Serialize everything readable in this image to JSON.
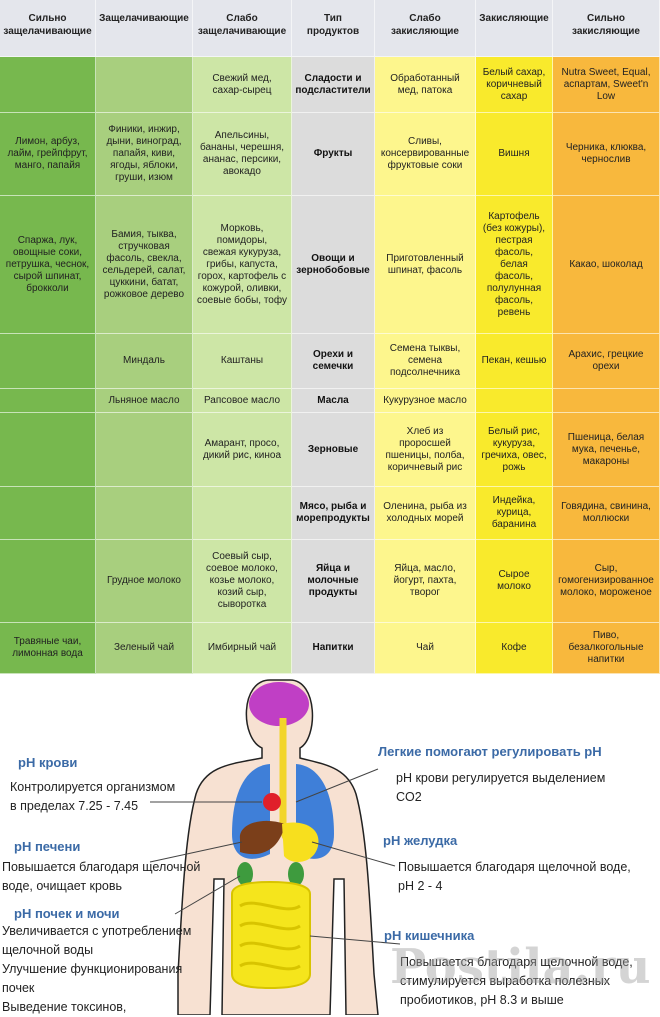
{
  "headers": [
    "Сильно\nзащелачивающие",
    "Защелачивающие",
    "Слабо\nзащелачивающие",
    "Тип\nпродуктов",
    "Слабо\nзакисляющие",
    "Закисляющие",
    "Сильно\nзакисляющие"
  ],
  "column_colors": [
    "#77b84e",
    "#a8cf7e",
    "#cde6a6",
    "#dcdcdc",
    "#fdf68d",
    "#f9ea2c",
    "#f8b83d"
  ],
  "rows": [
    {
      "type": "Сладости и\nподсластители",
      "cells": [
        "",
        "",
        "Свежий мед,\nсахар-сырец",
        "",
        "Обработанный\nмед, патока",
        "Белый сахар,\nкоричневый\nсахар",
        "Nutra Sweet, Equal,\nаспартам, Sweet'n\nLow"
      ]
    },
    {
      "type": "Фрукты",
      "cells": [
        "Лимон, арбуз,\nлайм, грейпфрут,\nманго, папайя",
        "Финики, инжир,\nдыни, виноград,\nпапайя, киви,\nягоды, яблоки,\nгруши, изюм",
        "Апельсины,\nбананы, черешня,\nананас, персики,\nавокадо",
        "",
        "Сливы,\nконсервированные\nфруктовые соки",
        "Вишня",
        "Черника, клюква,\nчернослив"
      ]
    },
    {
      "type": "Овощи и\nзернобобовые",
      "cells": [
        "Спаржа, лук,\nовощные соки,\nпетрушка, чеснок,\nсырой шпинат,\nброкколи",
        "Бамия, тыква,\nстручковая\nфасоль, свекла,\nсельдерей, салат,\nцуккини, батат,\nрожковое дерево",
        "Морковь,\nпомидоры,\nсвежая кукуруза,\nгрибы, капуста,\nгорох, картофель с\nкожурой, оливки,\nсоевые бобы, тофу",
        "",
        "Приготовленный\nшпинат, фасоль",
        "Картофель\n(без кожуры),\nпестрая\nфасоль,\nбелая\nфасоль,\nполулунная\nфасоль,\nревень",
        "Какао, шоколад"
      ]
    },
    {
      "type": "Орехи и\nсемечки",
      "cells": [
        "",
        "Миндаль",
        "Каштаны",
        "",
        "Семена тыквы,\nсемена\nподсолнечника",
        "Пекан, кешью",
        "Арахис, грецкие\nорехи"
      ]
    },
    {
      "type": "Масла",
      "cells": [
        "",
        "Льняное масло",
        "Рапсовое масло",
        "",
        "Кукурузное масло",
        "",
        ""
      ]
    },
    {
      "type": "Зерновые",
      "cells": [
        "",
        "",
        "Амарант, просо,\nдикий рис, киноа",
        "",
        "Хлеб из\nпроросшей\nпшеницы, полба,\nкоричневый рис",
        "Белый рис,\nкукуруза,\nгречиха, овес,\nрожь",
        "Пшеница, белая\nмука, печенье,\nмакароны"
      ]
    },
    {
      "type": "Мясо, рыба и\nморепродукты",
      "cells": [
        "",
        "",
        "",
        "",
        "Оленина, рыба из\nхолодных морей",
        "Индейка,\nкурица,\nбаранина",
        "Говядина, свинина,\nмоллюски"
      ]
    },
    {
      "type": "Яйца и\nмолочные\nпродукты",
      "cells": [
        "",
        "Грудное молоко",
        "Соевый сыр,\nсоевое молоко,\nкозье молоко,\nкозий сыр,\nсыворотка",
        "",
        "Яйца, масло,\nйогурт, пахта,\nтворог",
        "Сырое\nмолоко",
        "Сыр,\nгомогенизированное\nмолоко, мороженое"
      ]
    },
    {
      "type": "Напитки",
      "cells": [
        "Травяные чаи,\nлимонная вода",
        "Зеленый чай",
        "Имбирный чай",
        "",
        "Чай",
        "Кофе",
        "Пиво,\nбезалкогольные\nнапитки"
      ]
    }
  ],
  "diagram": {
    "blood_title": "pH крови",
    "blood_text": "Контролируется организмом\nв пределах 7.25 - 7.45",
    "lungs_title": "Легкие помогают регулировать pH",
    "lungs_text": "pH крови регулируется выделением\nCO2",
    "liver_title": "pH печени",
    "liver_text": "Повышается благодаря щелочной\nводе, очищает кровь",
    "stomach_title": "pH желудка",
    "stomach_text": "Повышается благодаря щелочной воде,\npH 2 - 4",
    "kidney_title": "pH почек и мочи",
    "kidney_text": "Увеличивается с употреблением\nщелочной воды\nУлучшение функционирования\nпочек\nВыведение токсинов,",
    "intestine_title": "pH кишечника",
    "intestine_text": "Повышается благодаря щелочной воде,\nстимулируется выработка полезных\nпробиотиков, pH 8.3 и выше",
    "watermark": "Postila.ru"
  }
}
